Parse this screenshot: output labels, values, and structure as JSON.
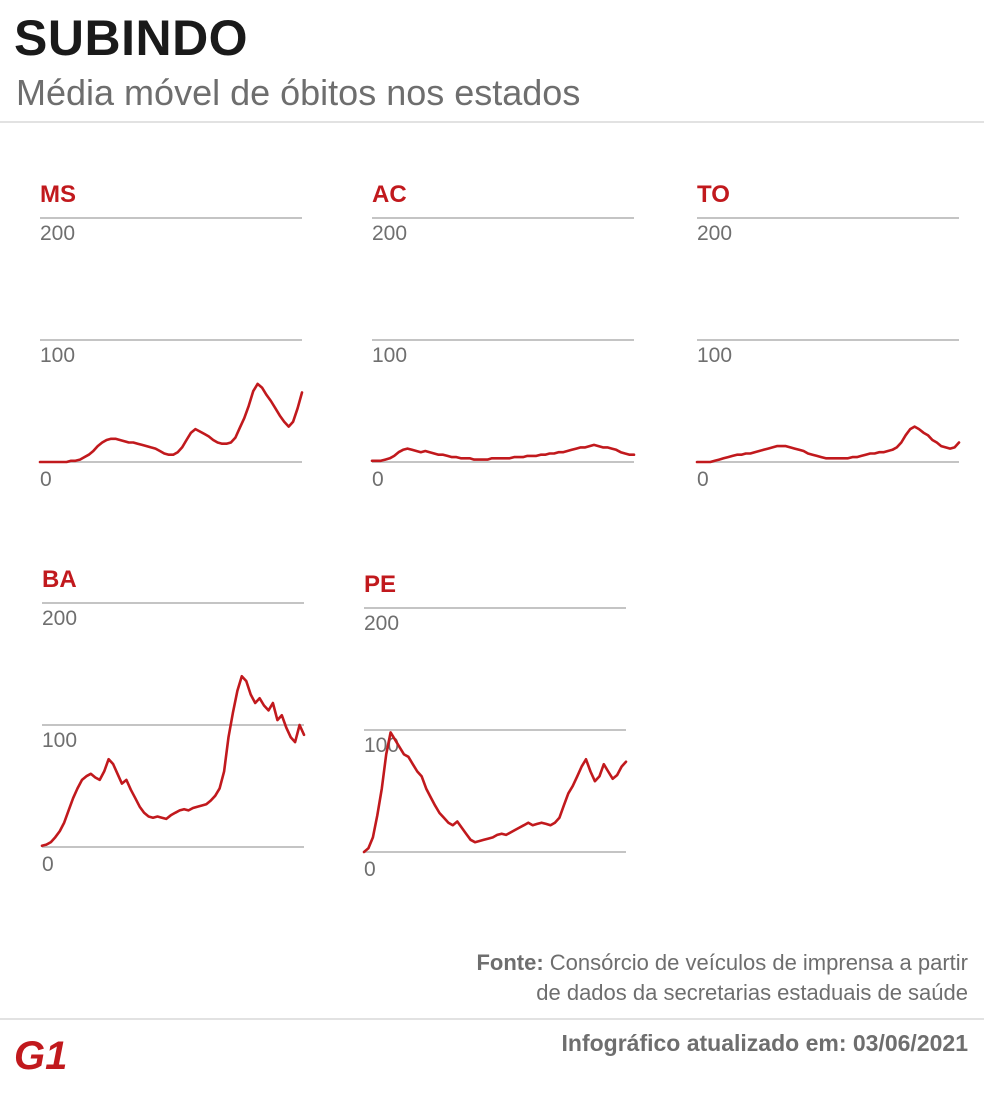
{
  "header": {
    "title": "SUBINDO",
    "subtitle": "Média móvel de óbitos nos estados"
  },
  "chart_data": [
    {
      "type": "line",
      "title": "MS",
      "y_ticks": [
        "0",
        "100",
        "200"
      ],
      "ylim": [
        0,
        200
      ],
      "series": [
        {
          "color": "#c1191d",
          "values": [
            0,
            0,
            0,
            0,
            0,
            0,
            0,
            1,
            1,
            2,
            4,
            6,
            9,
            13,
            16,
            18,
            19,
            19,
            18,
            17,
            16,
            16,
            15,
            14,
            13,
            12,
            11,
            9,
            7,
            6,
            6,
            8,
            12,
            18,
            24,
            27,
            25,
            23,
            21,
            18,
            16,
            15,
            15,
            16,
            20,
            28,
            36,
            46,
            58,
            64,
            61,
            55,
            50,
            44,
            38,
            33,
            29,
            33,
            44,
            57
          ]
        }
      ]
    },
    {
      "type": "line",
      "title": "AC",
      "y_ticks": [
        "0",
        "100",
        "200"
      ],
      "ylim": [
        0,
        200
      ],
      "series": [
        {
          "color": "#c1191d",
          "values": [
            1,
            1,
            1,
            2,
            3,
            5,
            8,
            10,
            11,
            10,
            9,
            8,
            9,
            8,
            7,
            6,
            6,
            5,
            4,
            4,
            3,
            3,
            3,
            2,
            2,
            2,
            2,
            3,
            3,
            3,
            3,
            3,
            4,
            4,
            4,
            5,
            5,
            5,
            6,
            6,
            7,
            7,
            8,
            8,
            9,
            10,
            11,
            12,
            12,
            13,
            14,
            13,
            12,
            12,
            11,
            10,
            8,
            7,
            6,
            6
          ]
        }
      ]
    },
    {
      "type": "line",
      "title": "TO",
      "y_ticks": [
        "0",
        "100",
        "200"
      ],
      "ylim": [
        0,
        200
      ],
      "series": [
        {
          "color": "#c1191d",
          "values": [
            0,
            0,
            0,
            0,
            1,
            2,
            3,
            4,
            5,
            6,
            6,
            7,
            7,
            8,
            9,
            10,
            11,
            12,
            13,
            13,
            13,
            12,
            11,
            10,
            9,
            7,
            6,
            5,
            4,
            3,
            3,
            3,
            3,
            3,
            3,
            4,
            4,
            5,
            6,
            7,
            7,
            8,
            8,
            9,
            10,
            12,
            16,
            22,
            27,
            29,
            27,
            24,
            22,
            18,
            16,
            13,
            12,
            11,
            12,
            16
          ]
        }
      ]
    },
    {
      "type": "line",
      "title": "BA",
      "y_ticks": [
        "0",
        "100",
        "200"
      ],
      "ylim": [
        0,
        200
      ],
      "series": [
        {
          "color": "#c1191d",
          "values": [
            1,
            2,
            4,
            8,
            13,
            20,
            30,
            40,
            48,
            55,
            58,
            60,
            57,
            55,
            62,
            72,
            68,
            60,
            52,
            55,
            47,
            40,
            33,
            28,
            25,
            24,
            25,
            24,
            23,
            26,
            28,
            30,
            31,
            30,
            32,
            33,
            34,
            35,
            38,
            42,
            48,
            62,
            90,
            110,
            128,
            140,
            136,
            125,
            118,
            122,
            116,
            112,
            118,
            104,
            108,
            98,
            90,
            86,
            100,
            92
          ]
        }
      ]
    },
    {
      "type": "line",
      "title": "PE",
      "y_ticks": [
        "0",
        "100",
        "200"
      ],
      "ylim": [
        0,
        200
      ],
      "series": [
        {
          "color": "#c1191d",
          "values": [
            0,
            3,
            12,
            30,
            52,
            80,
            98,
            92,
            86,
            80,
            78,
            72,
            66,
            62,
            52,
            45,
            38,
            32,
            28,
            24,
            22,
            25,
            20,
            15,
            10,
            8,
            9,
            10,
            11,
            12,
            14,
            15,
            14,
            16,
            18,
            20,
            22,
            24,
            22,
            23,
            24,
            23,
            22,
            24,
            28,
            38,
            48,
            54,
            62,
            70,
            76,
            66,
            58,
            62,
            72,
            66,
            60,
            63,
            70,
            74
          ]
        }
      ]
    }
  ],
  "footer": {
    "source_label": "Fonte:",
    "source_text_line1": "Consórcio de veículos de imprensa a partir",
    "source_text_line2": "de dados da secretarias estaduais de saúde",
    "updated": "Infográfico atualizado em: 03/06/2021",
    "logo_text": "G1"
  }
}
